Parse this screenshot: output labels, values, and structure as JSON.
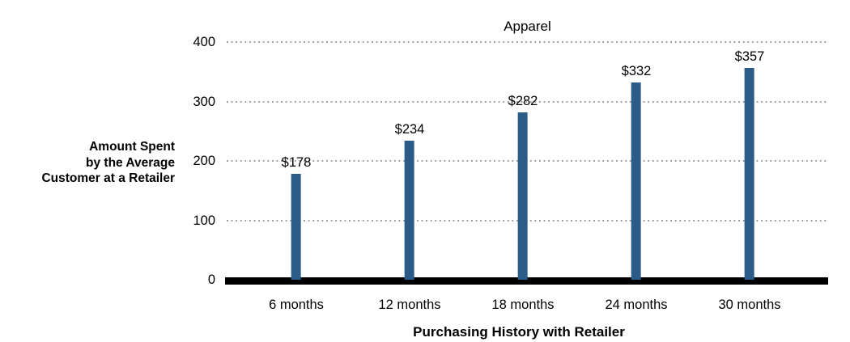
{
  "chart_data": {
    "type": "bar",
    "title": "Apparel",
    "categories": [
      "6 months",
      "12 months",
      "18 months",
      "24 months",
      "30 months"
    ],
    "values": [
      178,
      234,
      282,
      332,
      357
    ],
    "value_labels": [
      "$178",
      "$234",
      "$282",
      "$332",
      "$357"
    ],
    "xlabel": "Purchasing History with Retailer",
    "ylabel_lines": [
      "Amount Spent",
      "by the Average",
      "Customer at a Retailer"
    ],
    "yticks": [
      "400",
      "300",
      "200",
      "100",
      "0"
    ],
    "ylim": [
      0,
      400
    ],
    "grid": "horizontal dotted lines at 100-unit intervals",
    "legend": "none",
    "bar_color": "#2B5C87",
    "axis_line_color": "#000000",
    "gridline_color": "#9C9C9C"
  }
}
